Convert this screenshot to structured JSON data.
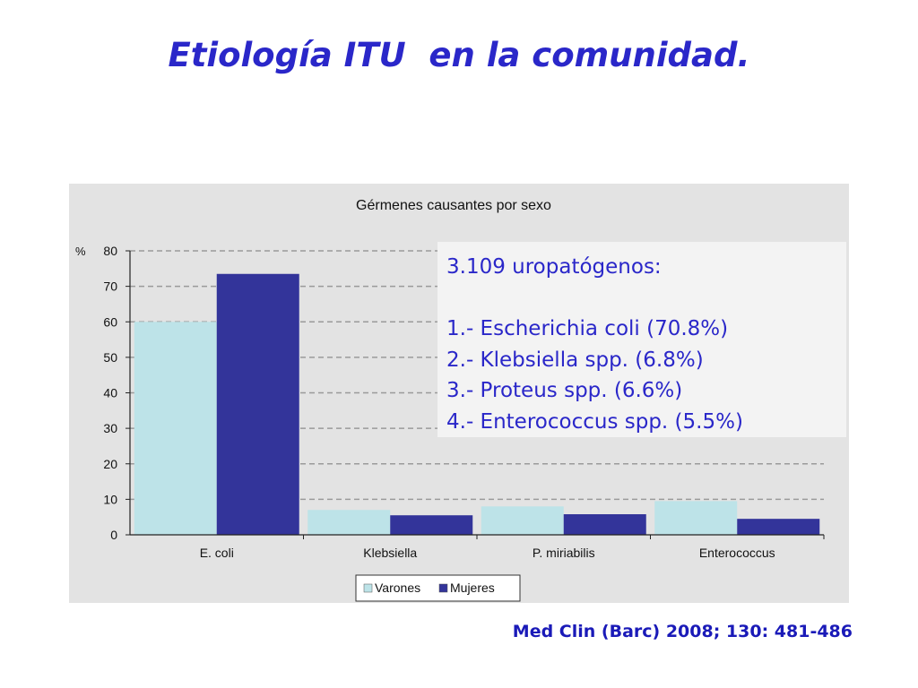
{
  "slide": {
    "title": "Etiología ITU  en la comunidad.",
    "citation": "Med Clin (Barc) 2008; 130: 481-486"
  },
  "info_box": {
    "heading": "3.109 uropatógenos:",
    "items": [
      "1.- Escherichia coli (70.8%)",
      "2.- Klebsiella spp. (6.8%)",
      "3.- Proteus spp. (6.6%)",
      "4.- Enterococcus spp. (5.5%)"
    ]
  },
  "chart_data": {
    "type": "bar",
    "title": "Gérmenes causantes por sexo",
    "ylabel": "%",
    "xlabel": "",
    "ylim": [
      0,
      80
    ],
    "yticks": [
      0,
      10,
      20,
      30,
      40,
      50,
      60,
      70,
      80
    ],
    "grid": true,
    "legend_position": "bottom",
    "categories": [
      "E. coli",
      "Klebsiella",
      "P. miriabilis",
      "Enterococcus"
    ],
    "series": [
      {
        "name": "Varones",
        "color": "#bde3e8",
        "values": [
          60,
          7,
          8,
          9.5
        ]
      },
      {
        "name": "Mujeres",
        "color": "#33349a",
        "values": [
          73.5,
          5.5,
          5.8,
          4.5
        ]
      }
    ]
  }
}
